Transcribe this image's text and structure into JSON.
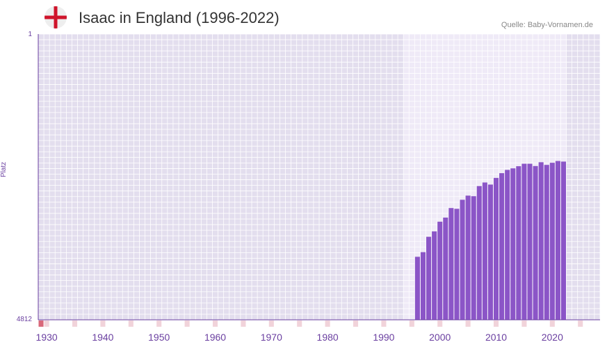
{
  "header": {
    "title": "Isaac in England (1996-2022)",
    "source": "Quelle: Baby-Vornamen.de",
    "flag_colors": {
      "background": "#ffffff",
      "cross": "#cf142b"
    }
  },
  "chart_data": {
    "type": "bar",
    "title": "Isaac in England (1996-2022)",
    "ylabel": "Platz",
    "xlabel": "",
    "y_axis_inverted": true,
    "ylim": [
      1,
      4812
    ],
    "y_tick_labels": [
      "1",
      "4812"
    ],
    "xlim": [
      1929,
      2029
    ],
    "x_tick_labels": [
      "1930",
      "1940",
      "1950",
      "1960",
      "1970",
      "1980",
      "1990",
      "2000",
      "2010",
      "2020"
    ],
    "x": [
      1996,
      1997,
      1998,
      1999,
      2000,
      2001,
      2002,
      2003,
      2004,
      2005,
      2006,
      2007,
      2008,
      2009,
      2010,
      2011,
      2012,
      2013,
      2014,
      2015,
      2016,
      2017,
      2018,
      2019,
      2020,
      2021,
      2022
    ],
    "values": [
      3751,
      3673,
      3414,
      3323,
      3160,
      3091,
      2930,
      2943,
      2791,
      2721,
      2731,
      2560,
      2500,
      2535,
      2423,
      2343,
      2288,
      2262,
      2226,
      2184,
      2184,
      2223,
      2159,
      2204,
      2168,
      2138,
      2148
    ],
    "colors": {
      "bar": "#8b55c7",
      "plot_bg": "#e3deee",
      "data_range_bg": "#efeaf7",
      "grid": "#ffffff",
      "axis": "#6a3fa0",
      "marker_strong": "#d9687a",
      "marker_weak": "#f1d3da"
    }
  }
}
